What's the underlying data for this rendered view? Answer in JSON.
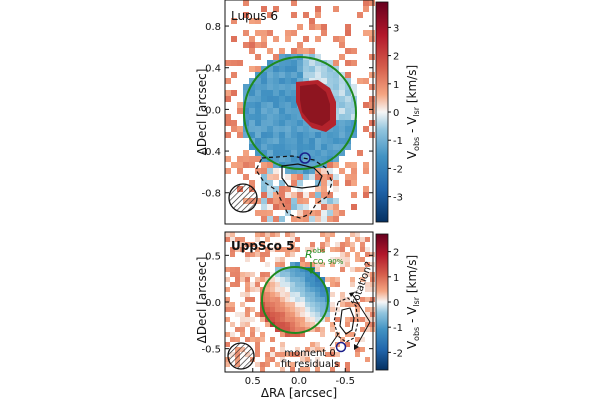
{
  "chart_data": [
    {
      "type": "heatmap",
      "panel_label": "Lupus 6",
      "xlabel": "",
      "ylabel": "ΔDecl [arcsec]",
      "colorbar_label": "V_obs - V_lsr [km/s]",
      "colorbar_label_parts": {
        "v": "V",
        "obs": "obs",
        "sep": " - ",
        "v2": "V",
        "lsr": "lsr",
        "unit": " [km/s]"
      },
      "cmap": "RdBu_r",
      "xlim": [
        0.85,
        -0.55
      ],
      "ylim": [
        -1.1,
        1.05
      ],
      "yticks": [
        0.8,
        0.4,
        0.0,
        -0.4,
        -0.8
      ],
      "ytick_labels": [
        "0.8",
        "0.4",
        "0.0",
        "-0.4",
        "-0.8"
      ],
      "clim": [
        -3.9,
        3.9
      ],
      "cbar_ticks": [
        3,
        2,
        1,
        0,
        -1,
        -2,
        -3
      ],
      "cbar_tick_labels": [
        "3",
        "2",
        "1",
        "0",
        "-1",
        "-2",
        "-3"
      ],
      "disk_ellipse": {
        "center": [
          -0.15,
          0.05
        ],
        "radius": 0.62,
        "color": "#1e8a1e"
      },
      "center_marker": {
        "pos": [
          -0.15,
          -0.5
        ],
        "color": "#1b1f8a"
      }
    },
    {
      "type": "heatmap",
      "panel_label": "UppSco 5",
      "xlabel": "ΔRA [arcsec]",
      "ylabel": "ΔDecl [arcsec]",
      "colorbar_label": "V_obs - V_lsr [km/s]",
      "colorbar_label_parts": {
        "v": "V",
        "obs": "obs",
        "sep": " - ",
        "v2": "V",
        "lsr": "lsr",
        "unit": " [km/s]"
      },
      "cmap": "RdBu_r",
      "xlim": [
        0.8,
        -0.8
      ],
      "ylim": [
        -0.75,
        0.75
      ],
      "xticks": [
        0.5,
        0.0,
        -0.5
      ],
      "xtick_labels": [
        "0.5",
        "0.0",
        "-0.5"
      ],
      "yticks": [
        0.5,
        0.0,
        -0.5
      ],
      "ytick_labels": [
        "0.5",
        "0.0",
        "-0.5"
      ],
      "clim": [
        -2.7,
        2.7
      ],
      "cbar_ticks": [
        2,
        1,
        0,
        -1,
        -2
      ],
      "cbar_tick_labels": [
        "2",
        "1",
        "0",
        "-1",
        "-2"
      ],
      "disk_ellipse": {
        "center": [
          0.05,
          0.0
        ],
        "radius": 0.3,
        "color": "#1e8a1e"
      },
      "center_marker": {
        "pos": [
          -0.5,
          -0.5
        ],
        "color": "#1b1f8a"
      },
      "annotations": {
        "radius_symbol": "R",
        "radius_sup": "obs",
        "radius_sub": "CO, 90%",
        "residuals_line1": "moment 0",
        "residuals_line2": "fit residuals",
        "rotation": "rotation?"
      }
    }
  ]
}
